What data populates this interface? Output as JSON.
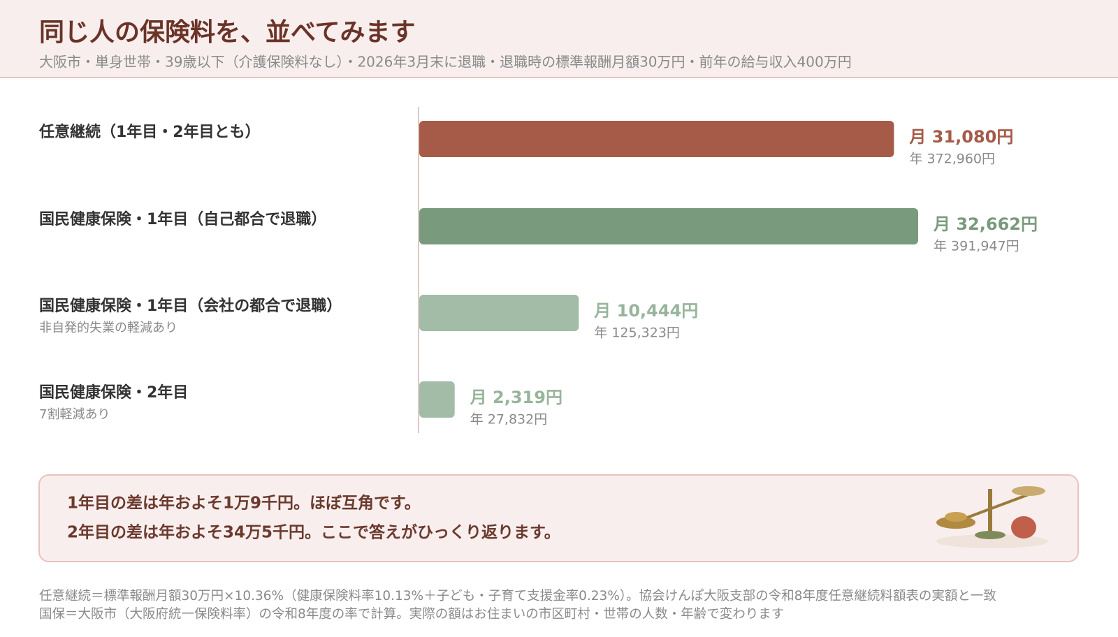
{
  "chart_data": {
    "type": "bar",
    "title": "同じ人の保険料を、並べてみます",
    "subtitle": "大阪市・単身世帯・39歳以下（介護保険料なし）・2026年3月末に退職・退職時の標準報酬月額30万円・前年の給与収入400万円",
    "categories": [
      "任意継続（1年目・2年目とも）",
      "国民健康保険・1年目（自己都合で退職）",
      "国民健康保険・1年目（会社の都合で退職）",
      "国民健康保険・2年目"
    ],
    "category_notes": [
      null,
      null,
      "非自発的失業の軽減あり",
      "7割軽減あり"
    ],
    "values": [
      31080,
      32662,
      10444,
      2319
    ],
    "value_labels": [
      "月 31,080円",
      "月 32,662円",
      "月 10,444円",
      "月 2,319円"
    ],
    "annual_values": [
      372960,
      391947,
      125323,
      27832
    ],
    "annual_labels": [
      "年 372,960円",
      "年 391,947円",
      "年 125,323円",
      "年 27,832円"
    ],
    "colors": [
      "#a65a48",
      "#7a9a7e",
      "#a3bca7",
      "#a3bca7"
    ],
    "label_colors": [
      "#a65a48",
      "#7a9a7e",
      "#98b49c",
      "#98b49c"
    ]
  },
  "callout": [
    "1年目の差は年およそ1万9千円。ほぼ互角です。",
    "2年目の差は年およそ34万5千円。ここで答えがひっくり返ります。"
  ],
  "footnotes": [
    "任意継続＝標準報酬月額30万円×10.36%（健康保険料率10.13%＋子ども・子育て支援金率0.23%）。協会けんぽ大阪支部の令和8年度任意継続料額表の実額と一致",
    "国保＝大阪市（大阪府統一保険料率）の令和8年度の率で計算。実際の額はお住まいの市区町村・世帯の人数・年齢で変わります"
  ]
}
